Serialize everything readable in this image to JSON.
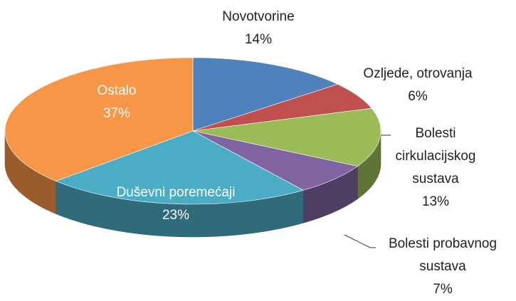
{
  "chart_data": {
    "type": "pie",
    "categories": [
      "Novotvorine",
      "Ozljede, otrovanja",
      "Bolesti cirkulacijskog sustava",
      "Bolesti probavnog sustava",
      "Duševni poremećaji",
      "Ostalo"
    ],
    "values": [
      14,
      6,
      13,
      7,
      23,
      37
    ],
    "value_labels": [
      "14%",
      "6%",
      "13%",
      "7%",
      "23%",
      "37%"
    ],
    "colors": [
      "#4f81bd",
      "#c0504d",
      "#9bbb59",
      "#8064a2",
      "#4bacc6",
      "#f79646"
    ]
  }
}
